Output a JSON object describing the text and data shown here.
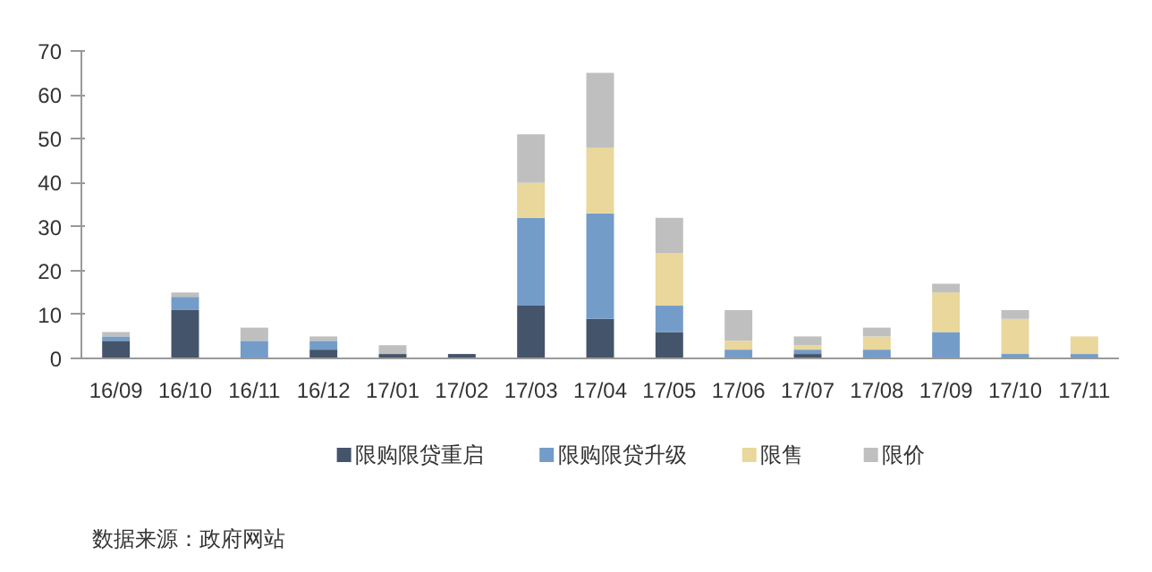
{
  "chart_data": {
    "type": "bar",
    "stacked": true,
    "categories": [
      "16/09",
      "16/10",
      "16/11",
      "16/12",
      "17/01",
      "17/02",
      "17/03",
      "17/04",
      "17/05",
      "17/06",
      "17/07",
      "17/08",
      "17/09",
      "17/10",
      "17/11"
    ],
    "series": [
      {
        "name": "限购限贷重启",
        "color": "#44546a",
        "values": [
          4,
          11,
          0,
          2,
          1,
          1,
          12,
          9,
          6,
          0,
          1,
          0,
          0,
          0,
          0
        ]
      },
      {
        "name": "限购限贷升级",
        "color": "#749cc9",
        "values": [
          1,
          3,
          4,
          2,
          0,
          0,
          20,
          24,
          6,
          2,
          1,
          2,
          6,
          1,
          1
        ]
      },
      {
        "name": "限售",
        "color": "#e9d79b",
        "values": [
          0,
          0,
          0,
          0,
          0,
          0,
          8,
          15,
          12,
          2,
          1,
          3,
          9,
          8,
          4
        ]
      },
      {
        "name": "限价",
        "color": "#bfbfbf",
        "values": [
          1,
          1,
          3,
          1,
          2,
          0,
          11,
          17,
          8,
          7,
          2,
          2,
          2,
          2,
          0
        ]
      }
    ],
    "ylim": [
      0,
      70
    ],
    "yticks": [
      0,
      10,
      20,
      30,
      40,
      50,
      60,
      70
    ],
    "grid": false,
    "legend": "bottom",
    "annotations": [
      "数据来源：政府网站"
    ]
  }
}
